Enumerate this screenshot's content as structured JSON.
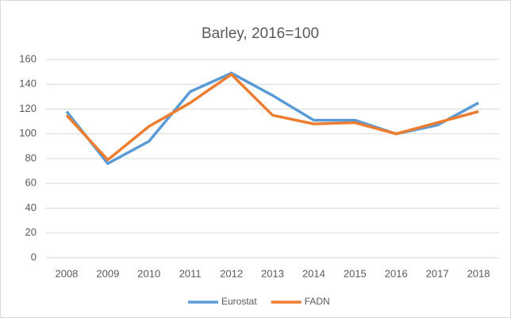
{
  "chart_data": {
    "type": "line",
    "title": "Barley, 2016=100",
    "categories": [
      "2008",
      "2009",
      "2010",
      "2011",
      "2012",
      "2013",
      "2014",
      "2015",
      "2016",
      "2017",
      "2018"
    ],
    "series": [
      {
        "name": "Eurostat",
        "color": "#5b9bd5",
        "values": [
          118,
          76,
          94,
          134,
          149,
          131,
          111,
          111,
          100,
          107,
          125
        ]
      },
      {
        "name": "FADN",
        "color": "#ed7d31",
        "values": [
          115,
          79,
          106,
          125,
          148,
          115,
          108,
          109,
          100,
          109,
          118
        ]
      }
    ],
    "ylim": [
      0,
      160
    ],
    "yticks": [
      0,
      20,
      40,
      60,
      80,
      100,
      120,
      140,
      160
    ],
    "grid": true,
    "legend": "bottom"
  }
}
